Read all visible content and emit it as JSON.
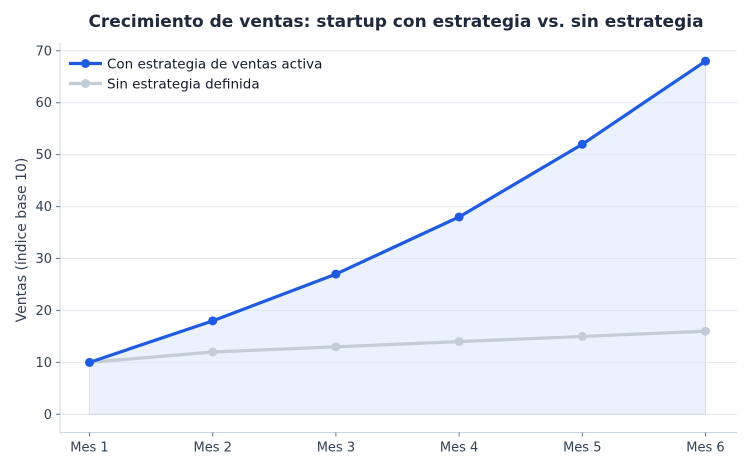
{
  "chart_data": {
    "type": "line",
    "title": "Crecimiento de ventas: startup con estrategia vs. sin estrategia",
    "xlabel": "",
    "ylabel": "Ventas (índice base 10)",
    "categories": [
      "Mes 1",
      "Mes 2",
      "Mes 3",
      "Mes 4",
      "Mes 5",
      "Mes 6"
    ],
    "ylim": [
      -3.5,
      71.5
    ],
    "yticks": [
      0,
      10,
      20,
      30,
      40,
      50,
      60,
      70
    ],
    "grid": true,
    "legend_position": "top-left",
    "series": [
      {
        "name": "Con estrategia de ventas activa",
        "values": [
          10,
          18,
          27,
          38,
          52,
          68
        ],
        "color": "#1f5be0",
        "fill": "#dbe6fb"
      },
      {
        "name": "Sin estrategia definida",
        "values": [
          10,
          12,
          13,
          14,
          15,
          16
        ],
        "color": "#c4ccd6"
      }
    ]
  }
}
